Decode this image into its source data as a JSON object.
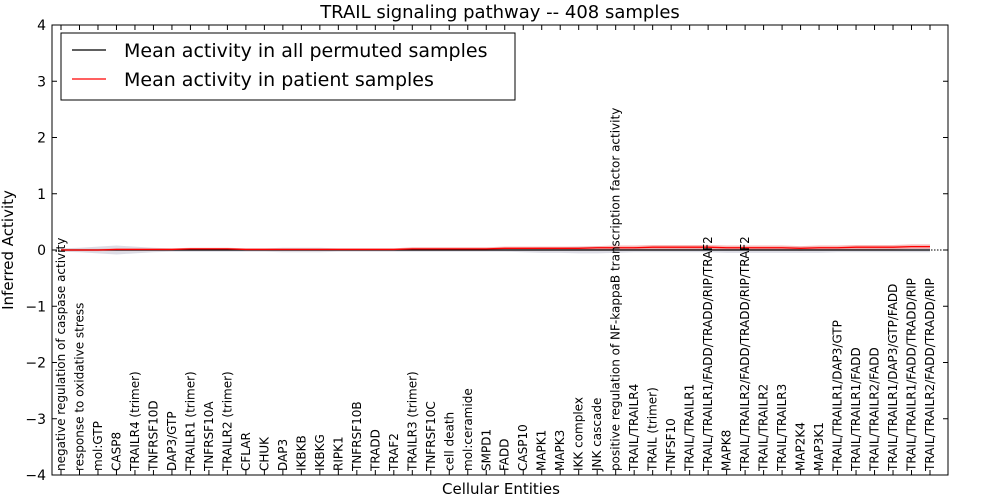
{
  "chart_data": {
    "type": "line",
    "title": "TRAIL signaling pathway -- 408 samples",
    "xlabel": "Cellular Entities",
    "ylabel": "Inferred Activity",
    "ylim": [
      -4,
      4
    ],
    "yticks": [
      -4,
      -3,
      -2,
      -1,
      0,
      1,
      2,
      3,
      4
    ],
    "ytick_labels": [
      "−4",
      "−3",
      "−2",
      "−1",
      "0",
      "1",
      "2",
      "3",
      "4"
    ],
    "legend_position": "top-left",
    "categories": [
      "negative regulation of caspase activity",
      "response to oxidative stress",
      "mol:GTP",
      "CASP8",
      "TRAILR4 (trimer)",
      "TNFRSF10D",
      "DAP3/GTP",
      "TRAILR1 (trimer)",
      "TNFRSF10A",
      "TRAILR2 (trimer)",
      "CFLAR",
      "CHUK",
      "DAP3",
      "IKBKB",
      "IKBKG",
      "RIPK1",
      "TNFRSF10B",
      "TRADD",
      "TRAF2",
      "TRAILR3 (trimer)",
      "TNFRSF10C",
      "cell death",
      "mol:ceramide",
      "SMPD1",
      "FADD",
      "CASP10",
      "MAPK1",
      "MAPK3",
      "IKK complex",
      "JNK cascade",
      "positive regulation of NF-kappaB transcription factor activity",
      "TRAIL/TRAILR4",
      "TRAIL (trimer)",
      "TNFSF10",
      "TRAIL/TRAILR1",
      "TRAIL/TRAILR1/FADD/TRADD/RIP/TRAF2",
      "MAPK8",
      "TRAIL/TRAILR2/FADD/TRADD/RIP/TRAF2",
      "TRAIL/TRAILR2",
      "TRAIL/TRAILR3",
      "MAP2K4",
      "MAP3K1",
      "TRAIL/TRAILR1/DAP3/GTP",
      "TRAIL/TRAILR1/FADD",
      "TRAIL/TRAILR2/FADD",
      "TRAIL/TRAILR1/DAP3/GTP/FADD",
      "TRAIL/TRAILR1/FADD/TRADD/RIP",
      "TRAIL/TRAILR2/FADD/TRADD/RIP"
    ],
    "series": [
      {
        "name": "Mean activity in all permuted samples",
        "color": "#000000",
        "values": [
          0.0,
          0.0,
          0.0,
          0.0,
          0.0,
          0.0,
          0.0,
          0.0,
          0.0,
          0.0,
          0.0,
          0.0,
          0.0,
          0.0,
          0.0,
          0.0,
          0.0,
          0.0,
          0.0,
          0.0,
          0.0,
          0.0,
          0.0,
          0.0,
          0.0,
          0.0,
          0.0,
          0.0,
          0.0,
          0.0,
          0.0,
          0.0,
          0.0,
          0.0,
          0.0,
          0.0,
          0.0,
          0.0,
          0.0,
          0.0,
          0.0,
          0.0,
          0.0,
          0.0,
          0.0,
          0.0,
          0.0,
          0.0
        ],
        "band": [
          0.03,
          0.04,
          0.06,
          0.08,
          0.06,
          0.04,
          0.03,
          0.03,
          0.03,
          0.03,
          0.03,
          0.03,
          0.04,
          0.04,
          0.04,
          0.03,
          0.03,
          0.03,
          0.03,
          0.03,
          0.03,
          0.03,
          0.03,
          0.03,
          0.03,
          0.04,
          0.05,
          0.05,
          0.06,
          0.06,
          0.05,
          0.04,
          0.04,
          0.04,
          0.04,
          0.04,
          0.05,
          0.05,
          0.05,
          0.05,
          0.05,
          0.05,
          0.04,
          0.04,
          0.04,
          0.04,
          0.04,
          0.04
        ],
        "band_color": "#c0c0d0"
      },
      {
        "name": "Mean activity in patient samples",
        "color": "#ff0000",
        "values": [
          0.0,
          0.0,
          0.0,
          0.01,
          0.01,
          0.01,
          0.01,
          0.02,
          0.02,
          0.02,
          0.01,
          0.01,
          0.01,
          0.01,
          0.01,
          0.01,
          0.01,
          0.01,
          0.01,
          0.02,
          0.02,
          0.02,
          0.02,
          0.02,
          0.03,
          0.03,
          0.03,
          0.03,
          0.03,
          0.04,
          0.04,
          0.04,
          0.05,
          0.05,
          0.05,
          0.05,
          0.04,
          0.04,
          0.04,
          0.04,
          0.03,
          0.04,
          0.04,
          0.05,
          0.05,
          0.05,
          0.06,
          0.06
        ],
        "band": [
          0.02,
          0.02,
          0.02,
          0.02,
          0.02,
          0.02,
          0.02,
          0.02,
          0.02,
          0.02,
          0.02,
          0.02,
          0.02,
          0.02,
          0.02,
          0.02,
          0.02,
          0.02,
          0.02,
          0.03,
          0.03,
          0.03,
          0.03,
          0.03,
          0.03,
          0.03,
          0.03,
          0.03,
          0.03,
          0.03,
          0.04,
          0.04,
          0.04,
          0.04,
          0.04,
          0.04,
          0.04,
          0.04,
          0.04,
          0.04,
          0.04,
          0.04,
          0.04,
          0.04,
          0.04,
          0.04,
          0.04,
          0.04
        ],
        "band_color": "#f08080"
      }
    ]
  }
}
